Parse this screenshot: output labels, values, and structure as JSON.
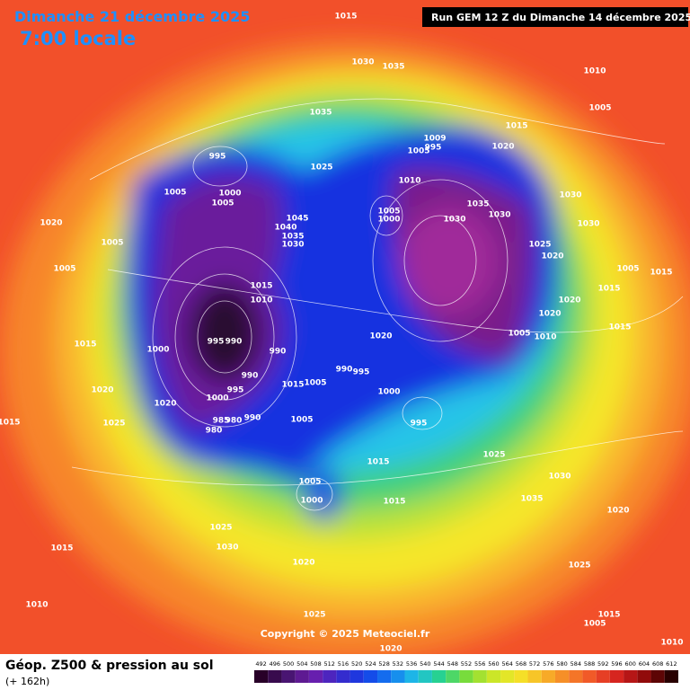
{
  "header": {
    "title": "Dimanche 21 décembre 2025",
    "time": "7:00 locale",
    "run": "Run GEM 12 Z du Dimanche 14 décembre 2025"
  },
  "footer": {
    "title": "Géop. Z500 & pression au sol",
    "subtitle": "(+ 162h)",
    "copyright": "Copyright © 2025 Meteociel.fr"
  },
  "legend": {
    "ticks": [
      492,
      496,
      500,
      504,
      508,
      512,
      516,
      520,
      524,
      528,
      532,
      536,
      540,
      544,
      548,
      552,
      556,
      560,
      564,
      568,
      572,
      576,
      580,
      584,
      588,
      592,
      596,
      600,
      604,
      608,
      612
    ]
  },
  "map": {
    "pressure_labels": [
      "1015",
      "1030",
      "1035",
      "1010",
      "1005",
      "1035",
      "1015",
      "1020",
      "1009",
      "995",
      "1005",
      "995",
      "1025",
      "1010",
      "1005",
      "1000",
      "1005",
      "1035",
      "1030",
      "1030",
      "1005",
      "1000",
      "1030",
      "1045",
      "1040",
      "1035",
      "1030",
      "1030",
      "1020",
      "1005",
      "1025",
      "1020",
      "1005",
      "1015",
      "1005",
      "1015",
      "1015",
      "1010",
      "1020",
      "1020",
      "1000",
      "995",
      "990",
      "990",
      "1015",
      "1020",
      "1005",
      "1010",
      "1015",
      "990",
      "990",
      "995",
      "1015",
      "1005",
      "995",
      "1000",
      "1020",
      "1000",
      "1020",
      "985",
      "980",
      "990",
      "1005",
      "995",
      "980",
      "1025",
      "1015",
      "1025",
      "1015",
      "1030",
      "1005",
      "1000",
      "1015",
      "1035",
      "1020",
      "1025",
      "1030",
      "1015",
      "1020",
      "1025",
      "1010",
      "1025",
      "1015",
      "1005",
      "1020",
      "1010"
    ]
  }
}
